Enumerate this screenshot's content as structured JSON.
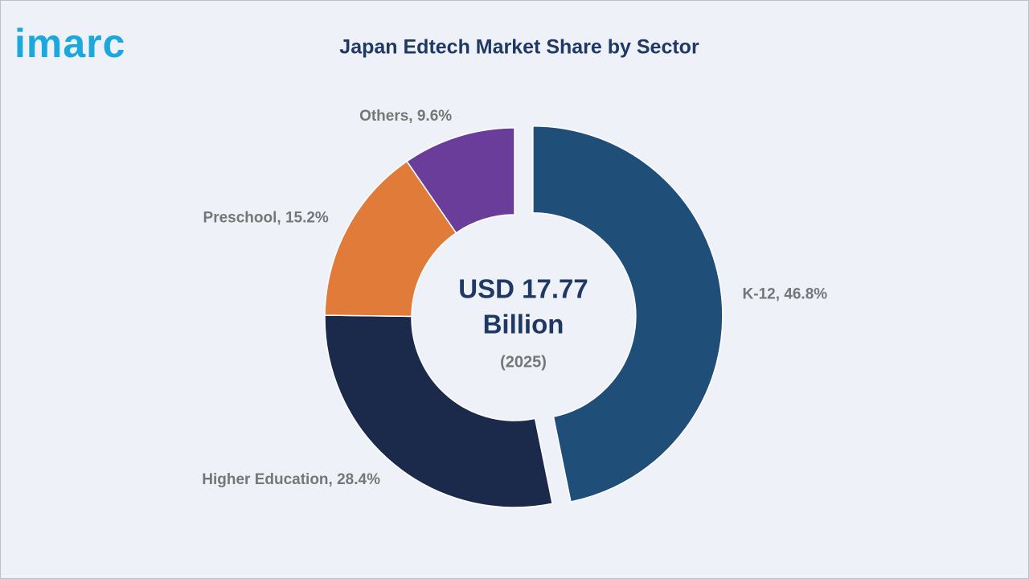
{
  "logo": "imarc",
  "chart_data": {
    "type": "pie",
    "title": "Japan Edtech Market Share by Sector",
    "center_text": [
      "USD 17.77",
      "Billion"
    ],
    "center_subtext": "(2025)",
    "values": [
      46.8,
      28.4,
      15.2,
      9.6
    ],
    "value_labels": [
      "K-12, 46.8%",
      "Higher Education, 28.4%",
      "Preschool, 15.2%",
      "Others, 9.6%"
    ],
    "colors": [
      "#1f4e79",
      "#1b2a4a",
      "#e07b39",
      "#6a3d9a"
    ],
    "explode": [
      true,
      false,
      false,
      false
    ],
    "donut": true
  }
}
